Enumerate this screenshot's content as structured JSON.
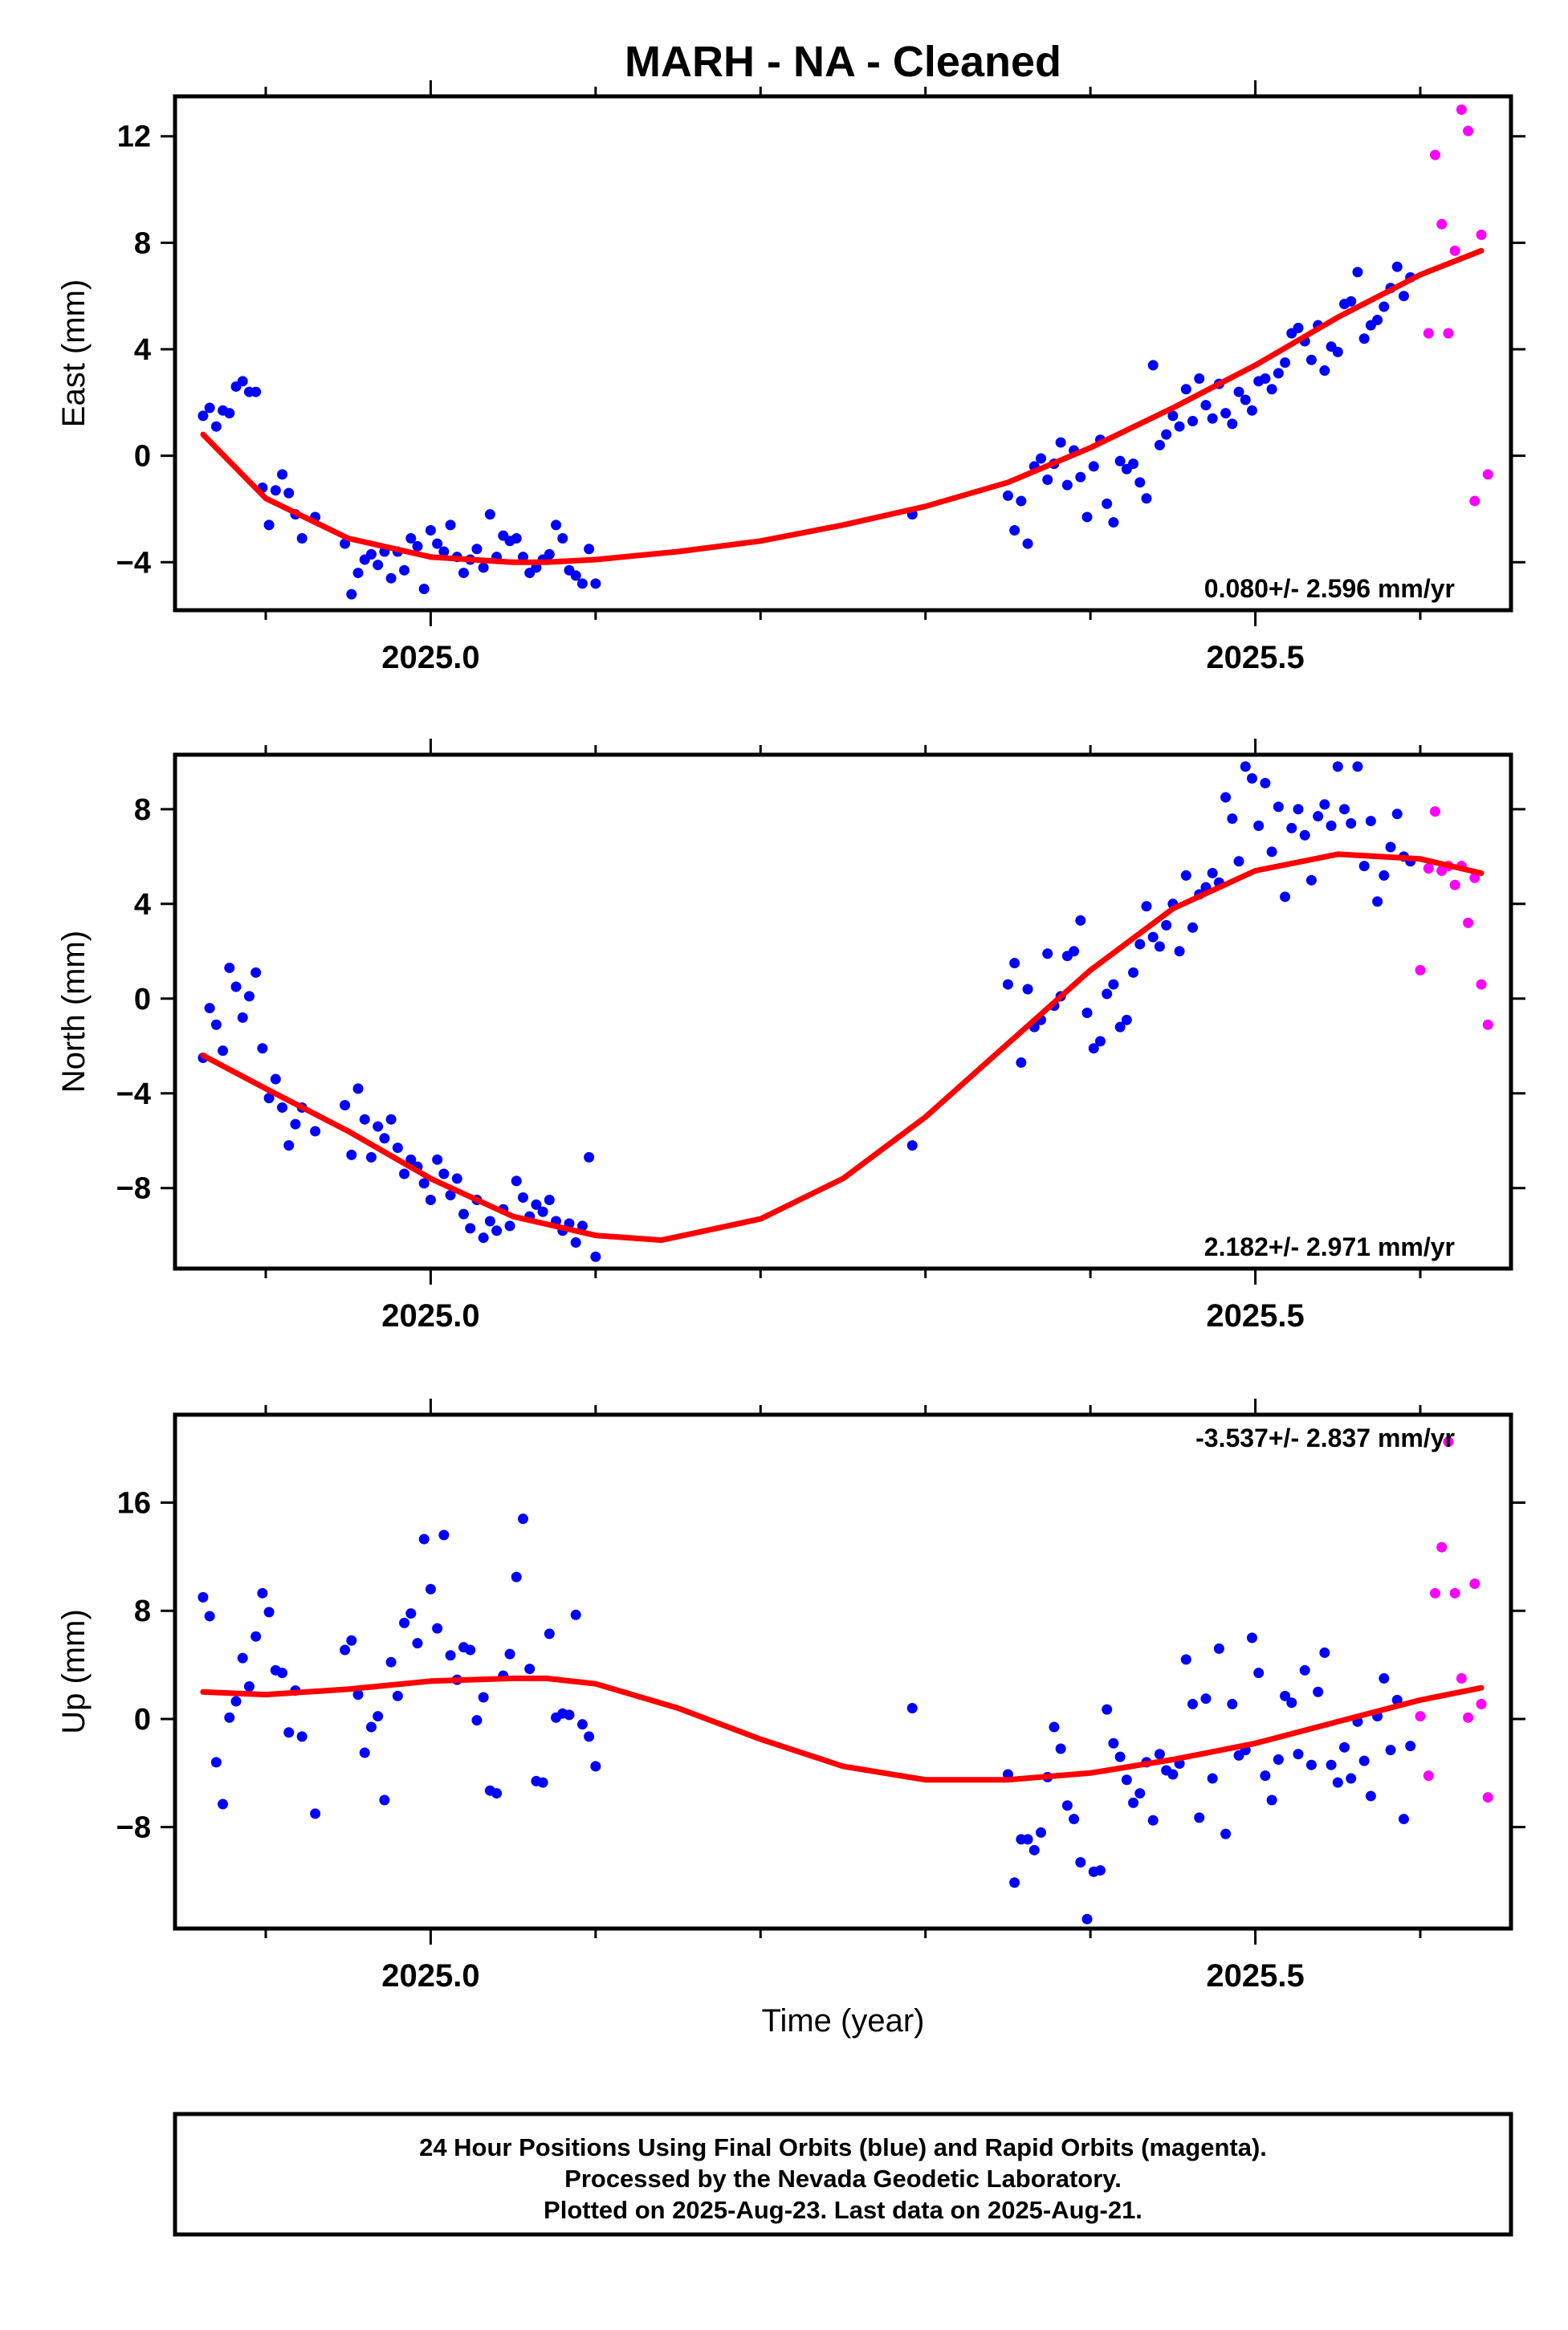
{
  "title": "MARH  - NA - Cleaned",
  "xlabel": "Time (year)",
  "xticks": [
    2025.0,
    2025.5
  ],
  "xlim": [
    2024.845,
    2025.655
  ],
  "colors": {
    "final": "#0000ff",
    "rapid": "#ff00ff",
    "fit": "#ff0000",
    "axis": "#000000"
  },
  "footer": {
    "line1": "24 Hour Positions Using Final Orbits (blue) and Rapid Orbits (magenta).",
    "line2": "Processed by the Nevada Geodetic Laboratory.",
    "line3": "Plotted on 2025-Aug-23. Last data on 2025-Aug-21."
  },
  "chart_data": [
    {
      "type": "scatter",
      "name": "East",
      "ylabel": "East (mm)",
      "ylim": [
        -5.8,
        13.5
      ],
      "yticks": [
        -4,
        0,
        4,
        8,
        12
      ],
      "rate_label": "0.080+/- 2.596 mm/yr",
      "rate_position": "bottom-right",
      "fit": {
        "x": [
          2024.862,
          2024.9,
          2024.95,
          2025.0,
          2025.05,
          2025.07,
          2025.1,
          2025.15,
          2025.2,
          2025.25,
          2025.3,
          2025.35,
          2025.4,
          2025.45,
          2025.5,
          2025.55,
          2025.6,
          2025.637
        ],
        "y": [
          0.8,
          -1.6,
          -3.1,
          -3.8,
          -4.0,
          -4.0,
          -3.9,
          -3.6,
          -3.2,
          -2.6,
          -1.9,
          -1.0,
          0.3,
          1.8,
          3.4,
          5.2,
          6.8,
          7.7
        ]
      },
      "final": {
        "x": [
          2024.862,
          2024.866,
          2024.87,
          2024.874,
          2024.878,
          2024.882,
          2024.886,
          2024.89,
          2024.894,
          2024.898,
          2024.902,
          2024.906,
          2024.91,
          2024.914,
          2024.918,
          2024.922,
          2024.93,
          2024.948,
          2024.952,
          2024.956,
          2024.96,
          2024.964,
          2024.968,
          2024.972,
          2024.976,
          2024.98,
          2024.984,
          2024.988,
          2024.992,
          2024.996,
          2025.0,
          2025.004,
          2025.008,
          2025.012,
          2025.016,
          2025.02,
          2025.024,
          2025.028,
          2025.032,
          2025.036,
          2025.04,
          2025.044,
          2025.048,
          2025.052,
          2025.056,
          2025.06,
          2025.064,
          2025.068,
          2025.072,
          2025.076,
          2025.08,
          2025.084,
          2025.088,
          2025.092,
          2025.096,
          2025.1,
          2025.292,
          2025.35,
          2025.354,
          2025.358,
          2025.362,
          2025.366,
          2025.37,
          2025.374,
          2025.378,
          2025.382,
          2025.386,
          2025.39,
          2025.394,
          2025.398,
          2025.402,
          2025.406,
          2025.41,
          2025.414,
          2025.418,
          2025.422,
          2025.426,
          2025.43,
          2025.434,
          2025.438,
          2025.442,
          2025.446,
          2025.45,
          2025.454,
          2025.458,
          2025.462,
          2025.466,
          2025.47,
          2025.474,
          2025.478,
          2025.482,
          2025.486,
          2025.49,
          2025.494,
          2025.498,
          2025.502,
          2025.506,
          2025.51,
          2025.514,
          2025.518,
          2025.522,
          2025.526,
          2025.53,
          2025.534,
          2025.538,
          2025.542,
          2025.546,
          2025.55,
          2025.554,
          2025.558,
          2025.562,
          2025.566,
          2025.57,
          2025.574,
          2025.578,
          2025.582,
          2025.586,
          2025.59,
          2025.594
        ],
        "y": [
          1.5,
          1.8,
          1.1,
          1.7,
          1.6,
          2.6,
          2.8,
          2.4,
          2.4,
          -1.2,
          -2.6,
          -1.3,
          -0.7,
          -1.4,
          -2.2,
          -3.1,
          -2.3,
          -3.3,
          -5.2,
          -4.4,
          -3.9,
          -3.7,
          -4.1,
          -3.6,
          -4.6,
          -3.6,
          -4.3,
          -3.1,
          -3.4,
          -5.0,
          -2.8,
          -3.3,
          -3.6,
          -2.6,
          -3.8,
          -4.4,
          -3.9,
          -3.5,
          -4.2,
          -2.2,
          -3.8,
          -3.0,
          -3.2,
          -3.1,
          -3.8,
          -4.4,
          -4.2,
          -3.9,
          -3.7,
          -2.6,
          -3.1,
          -4.3,
          -4.5,
          -4.8,
          -3.5,
          -4.8,
          -2.2,
          -1.5,
          -2.8,
          -1.7,
          -3.3,
          -0.4,
          -0.1,
          -0.9,
          -0.3,
          0.5,
          -1.1,
          0.2,
          -0.8,
          -2.3,
          -0.4,
          0.6,
          -1.8,
          -2.5,
          -0.2,
          -0.5,
          -0.3,
          -1.0,
          -1.6,
          3.4,
          0.4,
          0.8,
          1.5,
          1.1,
          2.5,
          1.3,
          2.9,
          1.9,
          1.4,
          2.7,
          1.6,
          1.2,
          2.4,
          2.1,
          1.7,
          2.8,
          2.9,
          2.5,
          3.1,
          3.5,
          4.6,
          4.8,
          4.3,
          3.6,
          4.9,
          3.2,
          4.1,
          3.9,
          5.7,
          5.8,
          6.9,
          4.4,
          4.9,
          5.1,
          5.6,
          6.3,
          7.1,
          6.0,
          6.7
        ]
      },
      "rapid": {
        "x": [
          2025.605,
          2025.609,
          2025.613,
          2025.617,
          2025.621,
          2025.625,
          2025.629,
          2025.633,
          2025.637,
          2025.641
        ],
        "y": [
          4.6,
          11.3,
          8.7,
          4.6,
          7.7,
          13.0,
          12.2,
          -1.7,
          8.3,
          -0.7
        ]
      }
    },
    {
      "type": "scatter",
      "name": "North",
      "ylabel": "North (mm)",
      "ylim": [
        -11.4,
        10.3
      ],
      "yticks": [
        -8,
        -4,
        0,
        4,
        8
      ],
      "rate_label": "2.182+/- 2.971 mm/yr",
      "rate_position": "bottom-right",
      "fit": {
        "x": [
          2024.862,
          2024.9,
          2024.95,
          2025.0,
          2025.05,
          2025.1,
          2025.14,
          2025.2,
          2025.25,
          2025.3,
          2025.35,
          2025.4,
          2025.45,
          2025.5,
          2025.55,
          2025.6,
          2025.637
        ],
        "y": [
          -2.4,
          -3.8,
          -5.6,
          -7.6,
          -9.2,
          -10.0,
          -10.2,
          -9.3,
          -7.6,
          -5.0,
          -1.9,
          1.2,
          3.8,
          5.4,
          6.1,
          5.9,
          5.3
        ]
      },
      "final": {
        "x": [
          2024.862,
          2024.866,
          2024.87,
          2024.874,
          2024.878,
          2024.882,
          2024.886,
          2024.89,
          2024.894,
          2024.898,
          2024.902,
          2024.906,
          2024.91,
          2024.914,
          2024.918,
          2024.922,
          2024.93,
          2024.948,
          2024.952,
          2024.956,
          2024.96,
          2024.964,
          2024.968,
          2024.972,
          2024.976,
          2024.98,
          2024.984,
          2024.988,
          2024.992,
          2024.996,
          2025.0,
          2025.004,
          2025.008,
          2025.012,
          2025.016,
          2025.02,
          2025.024,
          2025.028,
          2025.032,
          2025.036,
          2025.04,
          2025.044,
          2025.048,
          2025.052,
          2025.056,
          2025.06,
          2025.064,
          2025.068,
          2025.072,
          2025.076,
          2025.08,
          2025.084,
          2025.088,
          2025.092,
          2025.096,
          2025.1,
          2025.292,
          2025.35,
          2025.354,
          2025.358,
          2025.362,
          2025.366,
          2025.37,
          2025.374,
          2025.378,
          2025.382,
          2025.386,
          2025.39,
          2025.394,
          2025.398,
          2025.402,
          2025.406,
          2025.41,
          2025.414,
          2025.418,
          2025.422,
          2025.426,
          2025.43,
          2025.434,
          2025.438,
          2025.442,
          2025.446,
          2025.45,
          2025.454,
          2025.458,
          2025.462,
          2025.466,
          2025.47,
          2025.474,
          2025.478,
          2025.482,
          2025.486,
          2025.49,
          2025.494,
          2025.498,
          2025.502,
          2025.506,
          2025.51,
          2025.514,
          2025.518,
          2025.522,
          2025.526,
          2025.53,
          2025.534,
          2025.538,
          2025.542,
          2025.546,
          2025.55,
          2025.554,
          2025.558,
          2025.562,
          2025.566,
          2025.57,
          2025.574,
          2025.578,
          2025.582,
          2025.586,
          2025.59,
          2025.594
        ],
        "y": [
          -2.5,
          -0.4,
          -1.1,
          -2.2,
          1.3,
          0.5,
          -0.8,
          0.1,
          1.1,
          -2.1,
          -4.2,
          -3.4,
          -4.6,
          -6.2,
          -5.3,
          -4.6,
          -5.6,
          -4.5,
          -6.6,
          -3.8,
          -5.1,
          -6.7,
          -5.4,
          -5.9,
          -5.1,
          -6.3,
          -7.4,
          -6.8,
          -7.1,
          -7.8,
          -8.5,
          -6.8,
          -7.4,
          -8.3,
          -7.6,
          -9.1,
          -9.7,
          -8.5,
          -10.1,
          -9.4,
          -9.8,
          -8.9,
          -9.6,
          -7.7,
          -8.4,
          -9.2,
          -8.7,
          -9.0,
          -8.5,
          -9.4,
          -9.8,
          -9.5,
          -10.3,
          -9.6,
          -6.7,
          -10.9,
          -6.2,
          0.6,
          1.5,
          -2.7,
          0.4,
          -1.2,
          -0.9,
          1.9,
          -0.3,
          0.1,
          1.8,
          2.0,
          3.3,
          -0.6,
          -2.1,
          -1.8,
          0.2,
          0.6,
          -1.2,
          -0.9,
          1.1,
          2.3,
          3.9,
          2.6,
          2.2,
          3.1,
          4.0,
          2.0,
          5.2,
          3.0,
          4.4,
          4.7,
          5.3,
          4.9,
          8.5,
          7.6,
          5.8,
          9.8,
          9.3,
          7.3,
          9.1,
          6.2,
          8.1,
          4.3,
          7.2,
          8.0,
          6.9,
          5.0,
          7.7,
          8.2,
          7.3,
          9.8,
          8.0,
          7.4,
          9.8,
          5.6,
          7.5,
          4.1,
          5.2,
          6.4,
          7.8,
          6.0,
          5.8
        ]
      },
      "rapid": {
        "x": [
          2025.6,
          2025.605,
          2025.609,
          2025.613,
          2025.617,
          2025.621,
          2025.625,
          2025.629,
          2025.633,
          2025.637,
          2025.641
        ],
        "y": [
          1.2,
          5.5,
          7.9,
          5.4,
          5.6,
          4.8,
          5.6,
          3.2,
          5.1,
          0.6,
          -1.1
        ]
      }
    },
    {
      "type": "scatter",
      "name": "Up",
      "ylabel": "Up (mm)",
      "ylim": [
        -15.5,
        22.5
      ],
      "yticks": [
        -8,
        0,
        8,
        16
      ],
      "rate_label": "-3.537+/- 2.837 mm/yr",
      "rate_position": "top-right",
      "fit": {
        "x": [
          2024.862,
          2024.9,
          2024.95,
          2025.0,
          2025.05,
          2025.07,
          2025.1,
          2025.15,
          2025.2,
          2025.25,
          2025.3,
          2025.35,
          2025.4,
          2025.45,
          2025.5,
          2025.55,
          2025.6,
          2025.637
        ],
        "y": [
          2.0,
          1.8,
          2.2,
          2.8,
          3.0,
          3.0,
          2.6,
          0.8,
          -1.5,
          -3.5,
          -4.5,
          -4.5,
          -4.0,
          -3.0,
          -1.8,
          -0.2,
          1.4,
          2.3
        ]
      },
      "final": {
        "x": [
          2024.862,
          2024.866,
          2024.87,
          2024.874,
          2024.878,
          2024.882,
          2024.886,
          2024.89,
          2024.894,
          2024.898,
          2024.902,
          2024.906,
          2024.91,
          2024.914,
          2024.918,
          2024.922,
          2024.93,
          2024.948,
          2024.952,
          2024.956,
          2024.96,
          2024.964,
          2024.968,
          2024.972,
          2024.976,
          2024.98,
          2024.984,
          2024.988,
          2024.992,
          2024.996,
          2025.0,
          2025.004,
          2025.008,
          2025.012,
          2025.016,
          2025.02,
          2025.024,
          2025.028,
          2025.032,
          2025.036,
          2025.04,
          2025.044,
          2025.048,
          2025.052,
          2025.056,
          2025.06,
          2025.064,
          2025.068,
          2025.072,
          2025.076,
          2025.08,
          2025.084,
          2025.088,
          2025.092,
          2025.096,
          2025.1,
          2025.292,
          2025.35,
          2025.354,
          2025.358,
          2025.362,
          2025.366,
          2025.37,
          2025.374,
          2025.378,
          2025.382,
          2025.386,
          2025.39,
          2025.394,
          2025.398,
          2025.402,
          2025.406,
          2025.41,
          2025.414,
          2025.418,
          2025.422,
          2025.426,
          2025.43,
          2025.434,
          2025.438,
          2025.442,
          2025.446,
          2025.45,
          2025.454,
          2025.458,
          2025.462,
          2025.466,
          2025.47,
          2025.474,
          2025.478,
          2025.482,
          2025.486,
          2025.49,
          2025.494,
          2025.498,
          2025.502,
          2025.506,
          2025.51,
          2025.514,
          2025.518,
          2025.522,
          2025.526,
          2025.53,
          2025.534,
          2025.538,
          2025.542,
          2025.546,
          2025.55,
          2025.554,
          2025.558,
          2025.562,
          2025.566,
          2025.57,
          2025.574,
          2025.578,
          2025.582,
          2025.586,
          2025.59,
          2025.594
        ],
        "y": [
          9.0,
          7.6,
          -3.2,
          -6.3,
          0.1,
          1.3,
          4.5,
          2.4,
          6.1,
          9.3,
          7.9,
          3.6,
          3.4,
          -1.0,
          2.1,
          -1.3,
          -7.0,
          5.1,
          5.8,
          1.8,
          -2.5,
          -0.6,
          0.2,
          -6.0,
          4.2,
          1.7,
          7.1,
          7.8,
          5.6,
          13.3,
          9.6,
          6.7,
          13.6,
          4.7,
          2.9,
          5.3,
          5.1,
          -0.1,
          1.6,
          -5.3,
          -5.5,
          3.2,
          4.8,
          10.5,
          14.8,
          3.7,
          -4.6,
          -4.7,
          6.3,
          0.1,
          0.4,
          0.3,
          7.7,
          -0.4,
          -1.3,
          -3.5,
          0.8,
          -4.1,
          -12.1,
          -8.9,
          -8.9,
          -9.7,
          -8.4,
          -4.3,
          -0.6,
          -2.2,
          -6.4,
          -7.4,
          -10.6,
          -14.8,
          -11.3,
          -11.2,
          0.7,
          -1.8,
          -2.8,
          -4.5,
          -6.2,
          -5.5,
          -3.2,
          -7.5,
          -2.6,
          -3.8,
          -4.1,
          -3.3,
          4.4,
          1.1,
          -7.3,
          1.5,
          -4.4,
          5.2,
          -8.5,
          1.1,
          -2.7,
          -2.3,
          6.0,
          3.4,
          -4.2,
          -6.0,
          -3.0,
          1.7,
          1.2,
          -2.6,
          3.6,
          -3.4,
          2.0,
          4.9,
          -3.4,
          -4.7,
          -2.1,
          -4.4,
          -0.2,
          -3.1,
          -5.7,
          0.2,
          3.0,
          -2.3,
          1.4,
          -7.4,
          -2.0
        ]
      },
      "rapid": {
        "x": [
          2025.6,
          2025.605,
          2025.609,
          2025.613,
          2025.617,
          2025.621,
          2025.625,
          2025.629,
          2025.633,
          2025.637,
          2025.641
        ],
        "y": [
          0.2,
          -4.2,
          9.3,
          12.7,
          20.5,
          9.3,
          3.0,
          0.1,
          10.0,
          1.1,
          -5.8
        ]
      }
    }
  ]
}
